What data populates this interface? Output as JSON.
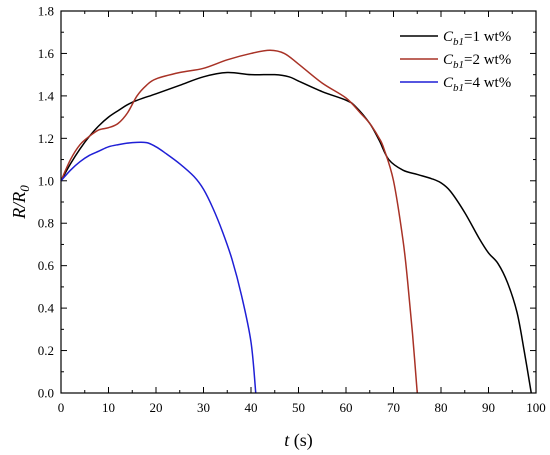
{
  "chart_data": {
    "type": "line",
    "xlabel": {
      "var": "t",
      "unit": " (s)"
    },
    "ylabel": {
      "base": "R/R",
      "sub": "0"
    },
    "xlim": [
      0,
      100
    ],
    "ylim": [
      0,
      1.8
    ],
    "xticks": [
      0,
      10,
      20,
      30,
      40,
      50,
      60,
      70,
      80,
      90,
      100
    ],
    "yticks": [
      0.0,
      0.2,
      0.4,
      0.6,
      0.8,
      1.0,
      1.2,
      1.4,
      1.6,
      1.8
    ],
    "ytick_labels": [
      "0.0",
      "0.2",
      "0.4",
      "0.6",
      "0.8",
      "1.0",
      "1.2",
      "1.4",
      "1.6",
      "1.8"
    ],
    "grid": false,
    "legend_position": "top-right",
    "series": [
      {
        "name": "1 wt%",
        "legend": {
          "var": "C",
          "sub": "b1",
          "rest": "=1 wt%"
        },
        "color": "#000000",
        "points": [
          [
            0,
            1.0
          ],
          [
            2,
            1.08
          ],
          [
            4,
            1.15
          ],
          [
            6,
            1.21
          ],
          [
            8,
            1.26
          ],
          [
            10,
            1.3
          ],
          [
            12,
            1.33
          ],
          [
            15,
            1.37
          ],
          [
            20,
            1.41
          ],
          [
            25,
            1.45
          ],
          [
            30,
            1.49
          ],
          [
            35,
            1.51
          ],
          [
            40,
            1.5
          ],
          [
            45,
            1.5
          ],
          [
            48,
            1.49
          ],
          [
            50,
            1.47
          ],
          [
            55,
            1.42
          ],
          [
            60,
            1.38
          ],
          [
            62,
            1.35
          ],
          [
            65,
            1.27
          ],
          [
            67,
            1.19
          ],
          [
            69,
            1.1
          ],
          [
            72,
            1.05
          ],
          [
            75,
            1.03
          ],
          [
            78,
            1.01
          ],
          [
            80,
            0.99
          ],
          [
            82,
            0.95
          ],
          [
            85,
            0.85
          ],
          [
            88,
            0.73
          ],
          [
            90,
            0.66
          ],
          [
            92,
            0.61
          ],
          [
            94,
            0.52
          ],
          [
            96,
            0.38
          ],
          [
            97.5,
            0.2
          ],
          [
            99,
            0.0
          ]
        ]
      },
      {
        "name": "2 wt%",
        "legend": {
          "var": "C",
          "sub": "b1",
          "rest": "=2 wt%"
        },
        "color": "#a83226",
        "points": [
          [
            0,
            1.0
          ],
          [
            2,
            1.1
          ],
          [
            4,
            1.17
          ],
          [
            6,
            1.21
          ],
          [
            8,
            1.24
          ],
          [
            10,
            1.25
          ],
          [
            12,
            1.27
          ],
          [
            14,
            1.32
          ],
          [
            16,
            1.4
          ],
          [
            18,
            1.45
          ],
          [
            20,
            1.48
          ],
          [
            25,
            1.51
          ],
          [
            30,
            1.53
          ],
          [
            35,
            1.57
          ],
          [
            40,
            1.6
          ],
          [
            44,
            1.615
          ],
          [
            47,
            1.6
          ],
          [
            50,
            1.55
          ],
          [
            55,
            1.46
          ],
          [
            60,
            1.39
          ],
          [
            63,
            1.32
          ],
          [
            65,
            1.27
          ],
          [
            67,
            1.2
          ],
          [
            68,
            1.15
          ],
          [
            70,
            1.0
          ],
          [
            72,
            0.72
          ],
          [
            73,
            0.52
          ],
          [
            74,
            0.28
          ],
          [
            75,
            0.0
          ]
        ]
      },
      {
        "name": "4 wt%",
        "legend": {
          "var": "C",
          "sub": "b1",
          "rest": "=4 wt%"
        },
        "color": "#1f1fd6",
        "points": [
          [
            0,
            1.0
          ],
          [
            2,
            1.05
          ],
          [
            4,
            1.09
          ],
          [
            6,
            1.12
          ],
          [
            8,
            1.14
          ],
          [
            10,
            1.16
          ],
          [
            12,
            1.17
          ],
          [
            15,
            1.18
          ],
          [
            18,
            1.18
          ],
          [
            20,
            1.16
          ],
          [
            22,
            1.13
          ],
          [
            25,
            1.08
          ],
          [
            28,
            1.02
          ],
          [
            30,
            0.96
          ],
          [
            32,
            0.87
          ],
          [
            34,
            0.76
          ],
          [
            36,
            0.63
          ],
          [
            38,
            0.46
          ],
          [
            40,
            0.24
          ],
          [
            41,
            0.0
          ]
        ]
      }
    ]
  }
}
